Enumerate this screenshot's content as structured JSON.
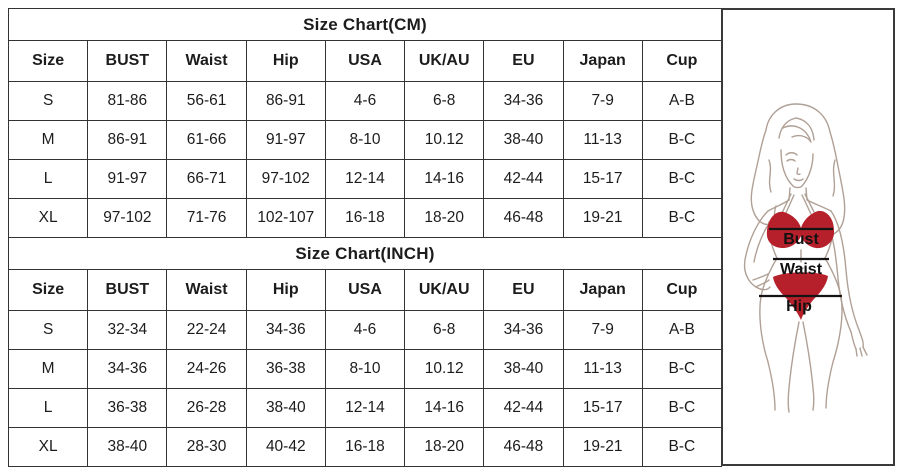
{
  "tables": {
    "sections": [
      {
        "title": "Size Chart(CM)",
        "headers": [
          "Size",
          "BUST",
          "Waist",
          "Hip",
          "USA",
          "UK/AU",
          "EU",
          "Japan",
          "Cup"
        ],
        "rows": [
          [
            "S",
            "81-86",
            "56-61",
            "86-91",
            "4-6",
            "6-8",
            "34-36",
            "7-9",
            "A-B"
          ],
          [
            "M",
            "86-91",
            "61-66",
            "91-97",
            "8-10",
            "10.12",
            "38-40",
            "11-13",
            "B-C"
          ],
          [
            "L",
            "91-97",
            "66-71",
            "97-102",
            "12-14",
            "14-16",
            "42-44",
            "15-17",
            "B-C"
          ],
          [
            "XL",
            "97-102",
            "71-76",
            "102-107",
            "16-18",
            "18-20",
            "46-48",
            "19-21",
            "B-C"
          ]
        ]
      },
      {
        "title": "Size Chart(INCH)",
        "headers": [
          "Size",
          "BUST",
          "Waist",
          "Hip",
          "USA",
          "UK/AU",
          "EU",
          "Japan",
          "Cup"
        ],
        "rows": [
          [
            "S",
            "32-34",
            "22-24",
            "34-36",
            "4-6",
            "6-8",
            "34-36",
            "7-9",
            "A-B"
          ],
          [
            "M",
            "34-36",
            "24-26",
            "36-38",
            "8-10",
            "10.12",
            "38-40",
            "11-13",
            "B-C"
          ],
          [
            "L",
            "36-38",
            "26-28",
            "38-40",
            "12-14",
            "14-16",
            "42-44",
            "15-17",
            "B-C"
          ],
          [
            "XL",
            "38-40",
            "28-30",
            "40-42",
            "16-18",
            "18-20",
            "46-48",
            "19-21",
            "B-C"
          ]
        ]
      }
    ]
  },
  "figure": {
    "bust_label": "Bust",
    "waist_label": "Waist",
    "hip_label": "Hip",
    "bikini_color": "#b6202b",
    "bikini_stroke": "#8f1820",
    "outline_color": "#b0a096",
    "measure_line_color": "#141414"
  }
}
